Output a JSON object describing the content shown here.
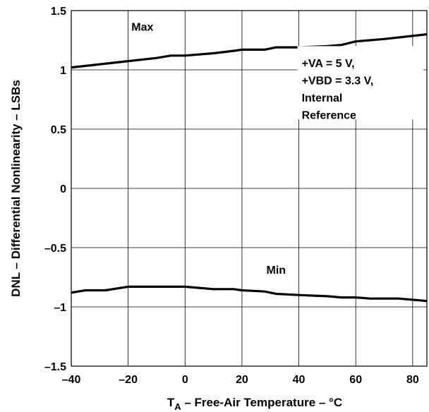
{
  "chart_data": {
    "type": "line",
    "xlabel_main": "T",
    "xlabel_sub": "A",
    "xlabel_rest": " – Free-Air Temperature – °C",
    "ylabel": "DNL – Differential Nonlinearity – LSBs",
    "xlim": [
      -40,
      85
    ],
    "ylim": [
      -1.5,
      1.5
    ],
    "x_ticks": [
      -40,
      -20,
      0,
      20,
      40,
      60,
      80
    ],
    "x_tick_labels": [
      "–40",
      "–20",
      "0",
      "20",
      "40",
      "60",
      "80"
    ],
    "y_ticks": [
      1.5,
      1,
      0.5,
      0,
      -0.5,
      -1,
      -1.5
    ],
    "y_tick_labels": [
      "1.5",
      "1",
      "0.5",
      "0",
      "–0.5",
      "–1",
      "–1.5"
    ],
    "grid": true,
    "annotation_lines": [
      "+VA = 5 V,",
      "+VBD = 3.3 V,",
      "Internal",
      "Reference"
    ],
    "series": [
      {
        "name": "Max",
        "x": [
          -40,
          -25,
          -10,
          -5,
          0,
          10,
          17,
          20,
          28,
          32,
          40,
          50,
          55,
          60,
          70,
          85
        ],
        "y": [
          1.02,
          1.06,
          1.1,
          1.12,
          1.12,
          1.14,
          1.16,
          1.17,
          1.17,
          1.19,
          1.19,
          1.2,
          1.21,
          1.24,
          1.26,
          1.3
        ]
      },
      {
        "name": "Min",
        "x": [
          -40,
          -35,
          -28,
          -20,
          -17,
          -10,
          -5,
          0,
          5,
          10,
          17,
          20,
          28,
          32,
          40,
          50,
          55,
          60,
          65,
          75,
          85
        ],
        "y": [
          -0.88,
          -0.86,
          -0.86,
          -0.83,
          -0.83,
          -0.83,
          -0.83,
          -0.83,
          -0.84,
          -0.85,
          -0.85,
          -0.86,
          -0.87,
          -0.89,
          -0.9,
          -0.91,
          -0.92,
          -0.92,
          -0.93,
          -0.93,
          -0.95
        ]
      }
    ]
  }
}
